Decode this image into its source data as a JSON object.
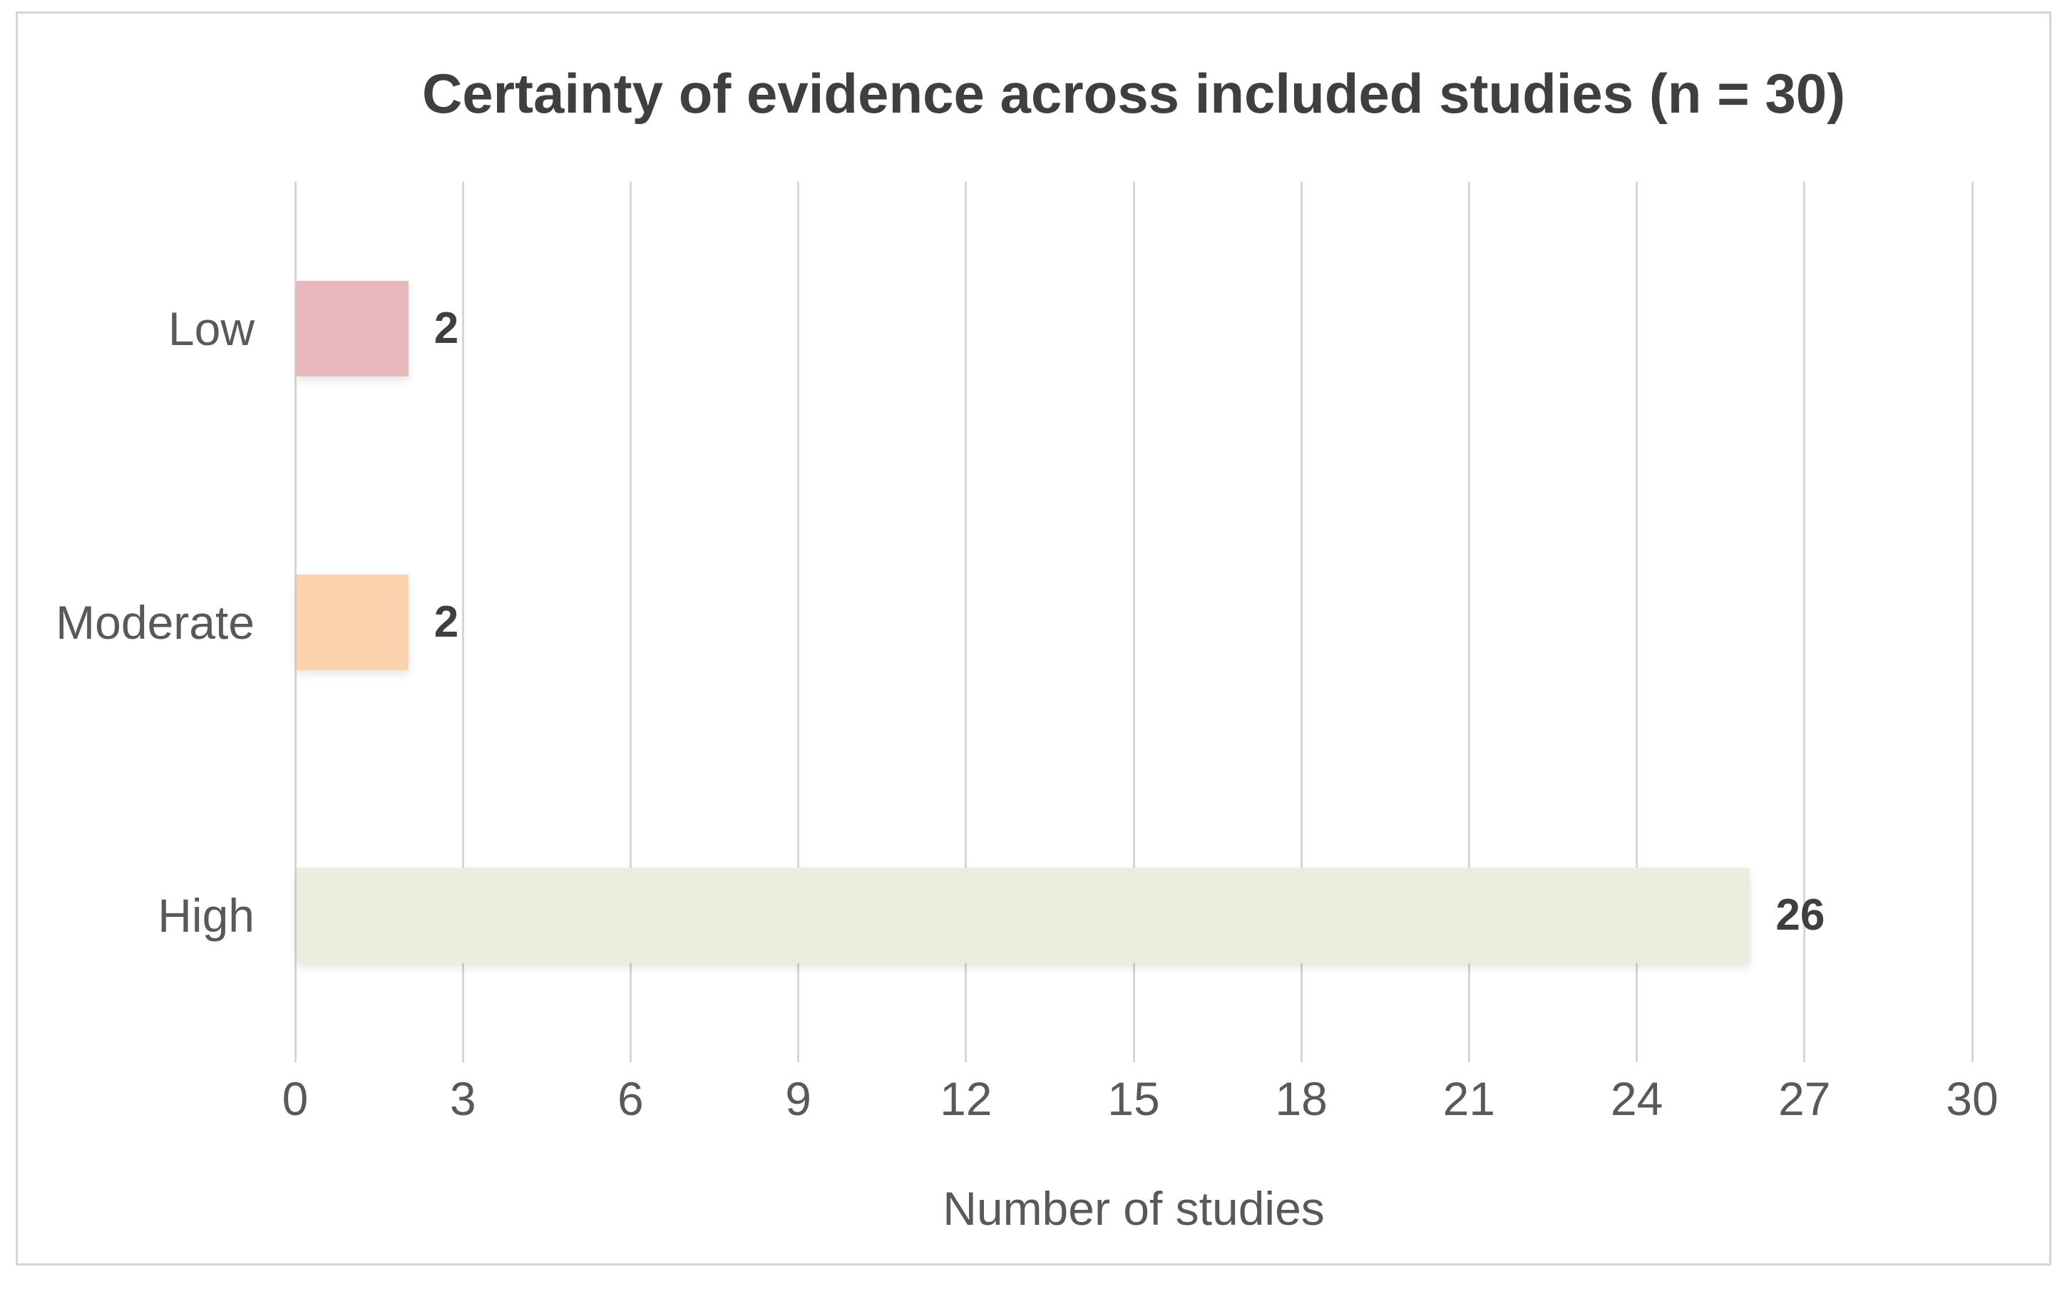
{
  "chart_data": {
    "type": "bar",
    "orientation": "horizontal",
    "title": "Certainty of evidence across included studies (n = 30)",
    "xlabel": "Number of studies",
    "ylabel": "",
    "categories": [
      "Low",
      "Moderate",
      "High"
    ],
    "values": [
      2,
      2,
      26
    ],
    "data_labels": [
      "2",
      "2",
      "26"
    ],
    "xlim": [
      0,
      30
    ],
    "xticks": [
      0,
      3,
      6,
      9,
      12,
      15,
      18,
      21,
      24,
      27,
      30
    ],
    "grid": true,
    "legend": false,
    "bar_colors": [
      "#e7b8bc",
      "#fcd3ae",
      "#eaefdd"
    ],
    "colors": {
      "title_text": "#3f3f3f",
      "label_text": "#595959",
      "value_text": "#3f3f3f",
      "gridline": "#d6d6d6",
      "frame_border": "#d5d5d5",
      "background": "#ffffff"
    }
  }
}
